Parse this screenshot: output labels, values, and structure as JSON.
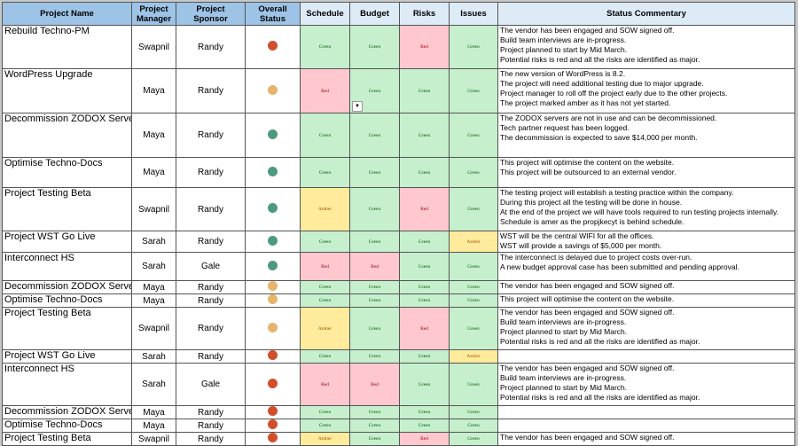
{
  "headers": {
    "name": "Project Name",
    "manager": "Project Manager",
    "sponsor": "Project Sponsor",
    "status": "Overall Status",
    "schedule": "Schedule",
    "budget": "Budget",
    "risks": "Risks",
    "issues": "Issues",
    "commentary": "Status Commentary"
  },
  "status_colors": {
    "red": "#d14f2d",
    "amber": "#e6b56b",
    "green": "#4e9a7c"
  },
  "rag_labels": {
    "G": "Green",
    "R": "Red",
    "A": "Amber"
  },
  "rows": [
    {
      "name": "Rebuild Techno-PM",
      "manager": "Swapnil",
      "sponsor": "Randy",
      "status": "red",
      "rag": [
        "G",
        "G",
        "R",
        "G"
      ],
      "commentary": "The vendor has been engaged and SOW signed off.\nBuild team interviews are in-progress.\nProject planned to start by Mid March.\nPotential risks is red and all the risks are identified as major."
    },
    {
      "name": "WordPress Upgrade",
      "manager": "Maya",
      "sponsor": "Randy",
      "status": "amber",
      "rag": [
        "R",
        "G",
        "G",
        "G"
      ],
      "commentary": "The new version of WordPress is 8.2.\nThe project will need additional testing due to major upgrade.\nProject manager to roll off the project early due to the other projects.\nThe project marked amber as it has not yet started."
    },
    {
      "name": "Decommission ZODOX Servers",
      "manager": "Maya",
      "sponsor": "Randy",
      "status": "green",
      "rag": [
        "G",
        "G",
        "G",
        "G"
      ],
      "commentary": "The ZODOX servers are not in use and can be decommissioned.\nTech partner request has been logged.\nThe decommission is expected to save $14,000 per month."
    },
    {
      "name": "Optimise Techno-Docs",
      "manager": "Maya",
      "sponsor": "Randy",
      "status": "green",
      "rag": [
        "G",
        "G",
        "G",
        "G"
      ],
      "commentary": "This project will optimise the content on the website.\nThis project will be outsourced to an external vendor."
    },
    {
      "name": "Project Testing Beta",
      "manager": "Swapnil",
      "sponsor": "Randy",
      "status": "green",
      "rag": [
        "A",
        "G",
        "R",
        "G"
      ],
      "commentary": "The testing project will establish a testing practice within the company.\nDuring this project all the testing will be done in house.\nAt the end of the project we will have tools required to run testing projects internally.\nSchedule is amer as the propjkecyt is behind schedule."
    },
    {
      "name": "Project WST Go Live",
      "manager": "Sarah",
      "sponsor": "Randy",
      "status": "green",
      "rag": [
        "G",
        "G",
        "G",
        "A"
      ],
      "commentary": "WST will be the central WIFI for all the offices.\nWST will provide a savings of $5,000 per month."
    },
    {
      "name": "Interconnect HS",
      "manager": "Sarah",
      "sponsor": "Gale",
      "status": "green",
      "rag": [
        "R",
        "R",
        "G",
        "G"
      ],
      "commentary": "The interconnect is delayed due to project costs over-run.\nA new budget approval case has been submitted and pending approval."
    },
    {
      "name": "Decommission ZODOX Servers",
      "manager": "Maya",
      "sponsor": "Randy",
      "status": "amber",
      "rag": [
        "G",
        "G",
        "G",
        "G"
      ],
      "commentary": "The vendor has been engaged and SOW signed off."
    },
    {
      "name": "Optimise Techno-Docs",
      "manager": "Maya",
      "sponsor": "Randy",
      "status": "amber",
      "rag": [
        "G",
        "G",
        "G",
        "G"
      ],
      "commentary": "This project will optimise the content on the website."
    },
    {
      "name": "Project Testing Beta",
      "manager": "Swapnil",
      "sponsor": "Randy",
      "status": "amber",
      "rag": [
        "A",
        "G",
        "R",
        "G"
      ],
      "commentary": "The vendor has been engaged and SOW signed off.\nBuild team interviews are in-progress.\nProject planned to start by Mid March.\nPotential risks is red and all the risks are identified as major."
    },
    {
      "name": "Project WST Go Live",
      "manager": "Sarah",
      "sponsor": "Randy",
      "status": "red",
      "rag": [
        "G",
        "G",
        "G",
        "A"
      ],
      "commentary": ""
    },
    {
      "name": "Interconnect HS",
      "manager": "Sarah",
      "sponsor": "Gale",
      "status": "red",
      "rag": [
        "R",
        "R",
        "G",
        "G"
      ],
      "commentary": "The vendor has been engaged and SOW signed off.\nBuild team interviews are in-progress.\nProject planned to start by Mid March.\nPotential risks is red and all the risks are identified as major."
    },
    {
      "name": "Decommission ZODOX Servers",
      "manager": "Maya",
      "sponsor": "Randy",
      "status": "red",
      "rag": [
        "G",
        "G",
        "G",
        "G"
      ],
      "commentary": ""
    },
    {
      "name": "Optimise Techno-Docs",
      "manager": "Maya",
      "sponsor": "Randy",
      "status": "red",
      "rag": [
        "G",
        "G",
        "G",
        "G"
      ],
      "commentary": ""
    },
    {
      "name": "Project Testing Beta",
      "manager": "Swapnil",
      "sponsor": "Randy",
      "status": "red",
      "rag": [
        "A",
        "G",
        "R",
        "G"
      ],
      "commentary": "The vendor has been engaged and SOW signed off."
    }
  ]
}
